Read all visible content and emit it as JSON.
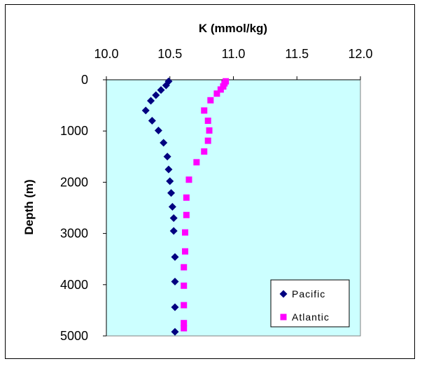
{
  "chart_data": {
    "type": "scatter",
    "title": "K (mmol/kg)",
    "xlabel": "K (mmol/kg)",
    "ylabel": "Depth (m)",
    "xlim": [
      10.0,
      12.0
    ],
    "ylim": [
      0,
      5000
    ],
    "y_inverted": true,
    "x_axis_position": "top",
    "x_ticks": [
      "10.0",
      "10.5",
      "11.0",
      "11.5",
      "12.0"
    ],
    "y_ticks": [
      "0",
      "1000",
      "2000",
      "3000",
      "4000",
      "5000"
    ],
    "x_tick_values": [
      10.0,
      10.5,
      11.0,
      11.5,
      12.0
    ],
    "y_tick_values": [
      0,
      1000,
      2000,
      3000,
      4000,
      5000
    ],
    "plot_background": "#ccffff",
    "grid": false,
    "legend_position": "bottom-right",
    "series": [
      {
        "name": "Pacific",
        "marker": "diamond",
        "color": "#000080",
        "points": [
          [
            10.49,
            30
          ],
          [
            10.47,
            110
          ],
          [
            10.43,
            200
          ],
          [
            10.39,
            300
          ],
          [
            10.35,
            410
          ],
          [
            10.31,
            600
          ],
          [
            10.36,
            800
          ],
          [
            10.41,
            990
          ],
          [
            10.45,
            1230
          ],
          [
            10.48,
            1500
          ],
          [
            10.49,
            1750
          ],
          [
            10.5,
            1980
          ],
          [
            10.51,
            2210
          ],
          [
            10.52,
            2480
          ],
          [
            10.53,
            2700
          ],
          [
            10.53,
            2950
          ],
          [
            10.54,
            3460
          ],
          [
            10.54,
            3940
          ],
          [
            10.54,
            4440
          ],
          [
            10.54,
            4920
          ]
        ]
      },
      {
        "name": "Atlantic",
        "marker": "square",
        "color": "#ff00ff",
        "points": [
          [
            10.94,
            30
          ],
          [
            10.93,
            70
          ],
          [
            10.92,
            130
          ],
          [
            10.9,
            190
          ],
          [
            10.87,
            270
          ],
          [
            10.82,
            400
          ],
          [
            10.77,
            600
          ],
          [
            10.8,
            800
          ],
          [
            10.81,
            990
          ],
          [
            10.8,
            1190
          ],
          [
            10.77,
            1400
          ],
          [
            10.71,
            1610
          ],
          [
            10.65,
            1950
          ],
          [
            10.63,
            2300
          ],
          [
            10.63,
            2640
          ],
          [
            10.62,
            2980
          ],
          [
            10.62,
            3350
          ],
          [
            10.61,
            3660
          ],
          [
            10.61,
            4020
          ],
          [
            10.61,
            4400
          ],
          [
            10.61,
            4750
          ],
          [
            10.61,
            4850
          ]
        ]
      }
    ]
  }
}
